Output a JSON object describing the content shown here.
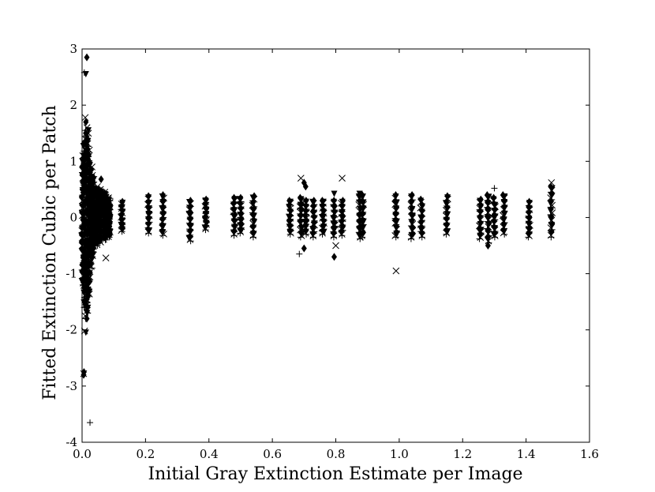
{
  "chart_data": {
    "type": "scatter",
    "xlabel": "Initial Gray Extinction Estimate per Image",
    "ylabel": "Fitted Extinction Cubic per Patch",
    "xlim": [
      0.0,
      1.6
    ],
    "ylim": [
      -4,
      3
    ],
    "x_ticks": [
      {
        "value": 0.0,
        "label": "0.0"
      },
      {
        "value": 0.2,
        "label": "0.2"
      },
      {
        "value": 0.4,
        "label": "0.4"
      },
      {
        "value": 0.6,
        "label": "0.6"
      },
      {
        "value": 0.8,
        "label": "0.8"
      },
      {
        "value": 1.0,
        "label": "1.0"
      },
      {
        "value": 1.2,
        "label": "1.2"
      },
      {
        "value": 1.4,
        "label": "1.4"
      },
      {
        "value": 1.6,
        "label": "1.6"
      }
    ],
    "y_ticks": [
      {
        "value": -4,
        "label": "-4"
      },
      {
        "value": -3,
        "label": "-3"
      },
      {
        "value": -2,
        "label": "-2"
      },
      {
        "value": -1,
        "label": "-1"
      },
      {
        "value": 0,
        "label": "0"
      },
      {
        "value": 1,
        "label": "1"
      },
      {
        "value": 2,
        "label": "2"
      },
      {
        "value": 3,
        "label": "3"
      }
    ],
    "grid": false,
    "legend": false,
    "marker_color": "#000000",
    "markers": [
      "plus",
      "x",
      "triangle-down",
      "diamond"
    ],
    "columns": [
      {
        "x": 0.125,
        "ymin": -0.25,
        "ymax": 0.28
      },
      {
        "x": 0.21,
        "ymin": -0.28,
        "ymax": 0.38
      },
      {
        "x": 0.255,
        "ymin": -0.32,
        "ymax": 0.4
      },
      {
        "x": 0.34,
        "ymin": -0.42,
        "ymax": 0.3
      },
      {
        "x": 0.39,
        "ymin": -0.22,
        "ymax": 0.32
      },
      {
        "x": 0.48,
        "ymin": -0.32,
        "ymax": 0.35
      },
      {
        "x": 0.5,
        "ymin": -0.28,
        "ymax": 0.35
      },
      {
        "x": 0.54,
        "ymin": -0.35,
        "ymax": 0.38
      },
      {
        "x": 0.655,
        "ymin": -0.3,
        "ymax": 0.3
      },
      {
        "x": 0.69,
        "ymin": -0.35,
        "ymax": 0.35
      },
      {
        "x": 0.705,
        "ymin": -0.3,
        "ymax": 0.3
      },
      {
        "x": 0.73,
        "ymin": -0.35,
        "ymax": 0.3
      },
      {
        "x": 0.76,
        "ymin": -0.3,
        "ymax": 0.3
      },
      {
        "x": 0.795,
        "ymin": -0.35,
        "ymax": 0.3
      },
      {
        "x": 0.82,
        "ymin": -0.32,
        "ymax": 0.3
      },
      {
        "x": 0.875,
        "ymin": -0.38,
        "ymax": 0.4
      },
      {
        "x": 0.885,
        "ymin": -0.35,
        "ymax": 0.4
      },
      {
        "x": 0.99,
        "ymin": -0.35,
        "ymax": 0.4
      },
      {
        "x": 1.04,
        "ymin": -0.38,
        "ymax": 0.4
      },
      {
        "x": 1.07,
        "ymin": -0.35,
        "ymax": 0.32
      },
      {
        "x": 1.15,
        "ymin": -0.3,
        "ymax": 0.38
      },
      {
        "x": 1.255,
        "ymin": -0.38,
        "ymax": 0.32
      },
      {
        "x": 1.28,
        "ymin": -0.45,
        "ymax": 0.4
      },
      {
        "x": 1.3,
        "ymin": -0.35,
        "ymax": 0.35
      },
      {
        "x": 1.33,
        "ymin": -0.3,
        "ymax": 0.4
      },
      {
        "x": 1.41,
        "ymin": -0.35,
        "ymax": 0.28
      },
      {
        "x": 1.48,
        "ymin": -0.35,
        "ymax": 0.55
      }
    ],
    "dense_cluster": [
      {
        "x": 0.003,
        "ymin": -1.2,
        "ymax": 1.1
      },
      {
        "x": 0.008,
        "ymin": -1.6,
        "ymax": 1.4
      },
      {
        "x": 0.012,
        "ymin": -1.8,
        "ymax": 1.6
      },
      {
        "x": 0.017,
        "ymin": -1.7,
        "ymax": 1.5
      },
      {
        "x": 0.022,
        "ymin": -1.4,
        "ymax": 1.2
      },
      {
        "x": 0.028,
        "ymin": -0.9,
        "ymax": 0.9
      },
      {
        "x": 0.035,
        "ymin": -0.7,
        "ymax": 0.75
      },
      {
        "x": 0.045,
        "ymin": -0.5,
        "ymax": 0.55
      },
      {
        "x": 0.058,
        "ymin": -0.45,
        "ymax": 0.5
      },
      {
        "x": 0.072,
        "ymin": -0.4,
        "ymax": 0.45
      },
      {
        "x": 0.085,
        "ymin": -0.35,
        "ymax": 0.35
      }
    ],
    "points": [
      {
        "x": 0.015,
        "y": 2.85,
        "marker": "diamond"
      },
      {
        "x": 0.012,
        "y": 2.55,
        "marker": "triangle-down"
      },
      {
        "x": 0.007,
        "y": 2.58,
        "marker": "plus"
      },
      {
        "x": 0.01,
        "y": 1.78,
        "marker": "x"
      },
      {
        "x": 0.012,
        "y": 1.7,
        "marker": "diamond"
      },
      {
        "x": 0.02,
        "y": 1.55,
        "marker": "triangle-down"
      },
      {
        "x": 0.06,
        "y": 0.68,
        "marker": "diamond"
      },
      {
        "x": 0.075,
        "y": -0.72,
        "marker": "x"
      },
      {
        "x": 0.01,
        "y": -1.55,
        "marker": "diamond"
      },
      {
        "x": 0.015,
        "y": -1.8,
        "marker": "diamond"
      },
      {
        "x": 0.012,
        "y": -2.05,
        "marker": "triangle-down"
      },
      {
        "x": 0.008,
        "y": -2.02,
        "marker": "x"
      },
      {
        "x": 0.006,
        "y": -2.75,
        "marker": "diamond"
      },
      {
        "x": 0.005,
        "y": -2.8,
        "marker": "diamond"
      },
      {
        "x": 0.025,
        "y": -3.65,
        "marker": "plus"
      },
      {
        "x": 0.005,
        "y": -2.78,
        "marker": "x"
      },
      {
        "x": 0.69,
        "y": 0.7,
        "marker": "x"
      },
      {
        "x": 0.7,
        "y": 0.62,
        "marker": "diamond"
      },
      {
        "x": 0.705,
        "y": 0.55,
        "marker": "diamond"
      },
      {
        "x": 0.685,
        "y": -0.65,
        "marker": "plus"
      },
      {
        "x": 0.7,
        "y": -0.55,
        "marker": "diamond"
      },
      {
        "x": 0.795,
        "y": -0.7,
        "marker": "diamond"
      },
      {
        "x": 0.8,
        "y": -0.5,
        "marker": "x"
      },
      {
        "x": 0.82,
        "y": 0.7,
        "marker": "x"
      },
      {
        "x": 0.795,
        "y": 0.42,
        "marker": "triangle-down"
      },
      {
        "x": 0.875,
        "y": 0.42,
        "marker": "triangle-down"
      },
      {
        "x": 0.99,
        "y": -0.95,
        "marker": "x"
      },
      {
        "x": 1.3,
        "y": 0.52,
        "marker": "plus"
      },
      {
        "x": 1.28,
        "y": -0.5,
        "marker": "diamond"
      },
      {
        "x": 1.48,
        "y": 0.62,
        "marker": "x"
      }
    ]
  }
}
